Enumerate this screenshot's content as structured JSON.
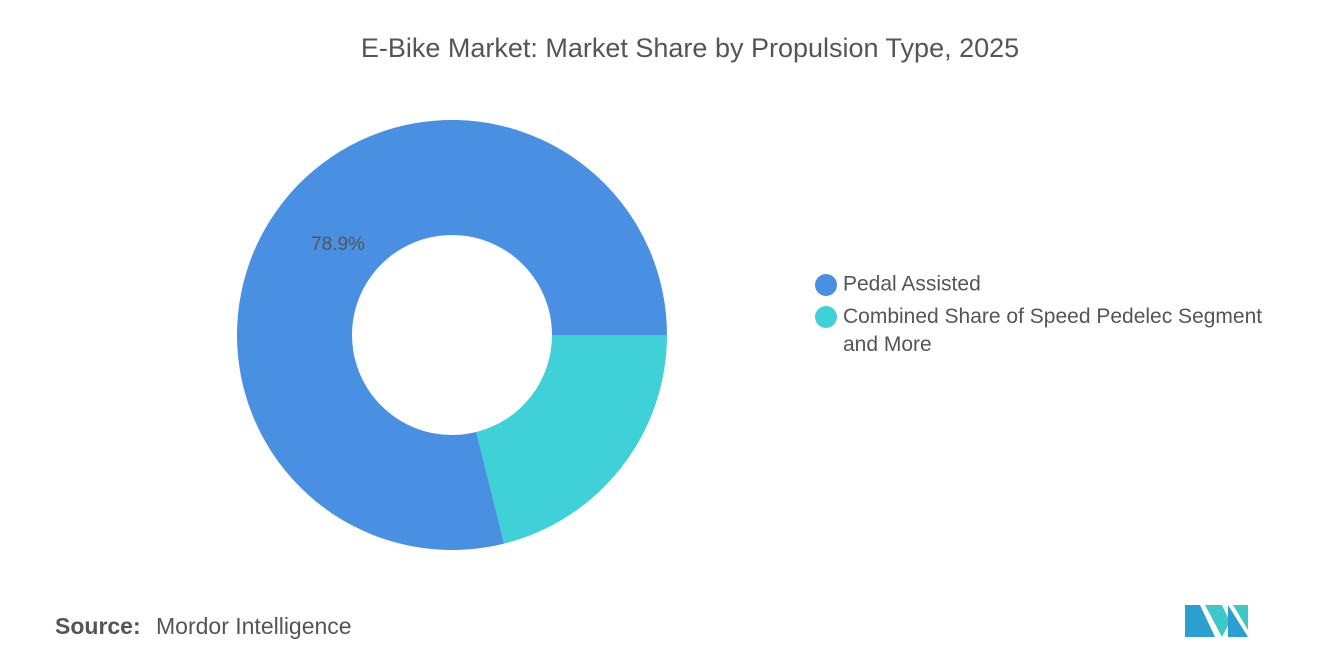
{
  "chart_data": {
    "type": "donut",
    "title": "E-Bike Market: Market Share by Propulsion Type, 2025",
    "categories": [
      "Pedal Assisted",
      "Combined Share of Speed Pedelec Segment and More"
    ],
    "values": [
      78.9,
      21.1
    ],
    "value_labels": [
      "78.9%",
      null
    ],
    "colors": [
      "#4a90e2",
      "#40d0d8"
    ],
    "source_label": "Source:",
    "source": "Mordor Intelligence"
  }
}
